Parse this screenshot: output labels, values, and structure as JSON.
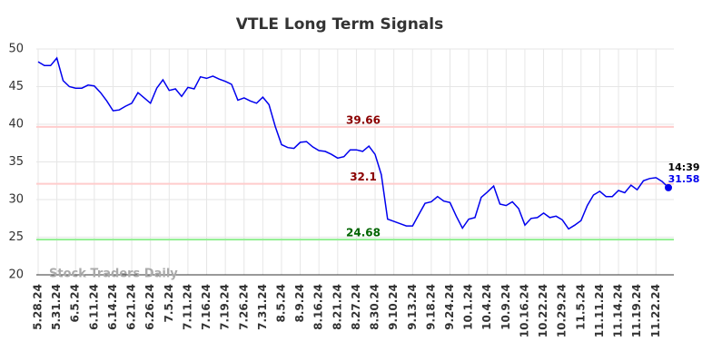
{
  "chart_data": {
    "type": "line",
    "title": "VTLE Long Term Signals",
    "watermark": "Stock Traders Daily",
    "categories": [
      "5.28.24",
      null,
      null,
      "5.31.24",
      null,
      null,
      "6.5.24",
      null,
      null,
      "6.11.24",
      null,
      null,
      "6.14.24",
      null,
      null,
      "6.21.24",
      null,
      null,
      "6.26.24",
      null,
      null,
      "7.5.24",
      null,
      null,
      "7.11.24",
      null,
      null,
      "7.16.24",
      null,
      null,
      "7.19.24",
      null,
      null,
      "7.26.24",
      null,
      null,
      "7.31.24",
      null,
      null,
      "8.5.24",
      null,
      null,
      "8.9.24",
      null,
      null,
      "8.16.24",
      null,
      null,
      "8.21.24",
      null,
      null,
      "8.27.24",
      null,
      null,
      "8.30.24",
      null,
      null,
      "9.10.24",
      null,
      null,
      "9.13.24",
      null,
      null,
      "9.18.24",
      null,
      null,
      "9.24.24",
      null,
      null,
      "10.1.24",
      null,
      null,
      "10.4.24",
      null,
      null,
      "10.9.24",
      null,
      null,
      "10.16.24",
      null,
      null,
      "10.22.24",
      null,
      null,
      "10.29.24",
      null,
      null,
      "11.5.24",
      null,
      null,
      "11.11.24",
      null,
      null,
      "11.14.24",
      null,
      null,
      "11.19.24",
      null,
      null,
      "11.22.24",
      null,
      null
    ],
    "values": [
      48.3,
      47.8,
      47.8,
      48.8,
      45.8,
      45.0,
      44.8,
      44.8,
      45.2,
      45.1,
      44.2,
      43.1,
      41.8,
      41.9,
      42.4,
      42.8,
      44.2,
      43.5,
      42.8,
      44.8,
      45.9,
      44.5,
      44.7,
      43.7,
      44.9,
      44.7,
      46.3,
      46.1,
      46.4,
      46.0,
      45.7,
      45.3,
      43.2,
      43.5,
      43.1,
      42.8,
      43.6,
      42.6,
      39.7,
      37.3,
      36.9,
      36.8,
      37.6,
      37.7,
      37.0,
      36.5,
      36.4,
      36.0,
      35.5,
      35.7,
      36.6,
      36.6,
      36.4,
      37.1,
      36.0,
      33.3,
      27.4,
      27.1,
      26.8,
      26.5,
      26.5,
      28.0,
      29.5,
      29.7,
      30.4,
      29.8,
      29.6,
      27.8,
      26.2,
      27.4,
      27.6,
      30.3,
      31.0,
      31.8,
      29.4,
      29.2,
      29.7,
      28.8,
      26.6,
      27.5,
      27.6,
      28.2,
      27.6,
      27.8,
      27.3,
      26.1,
      26.6,
      27.2,
      29.2,
      30.6,
      31.1,
      30.4,
      30.4,
      31.2,
      30.9,
      31.9,
      31.3,
      32.5,
      32.8,
      32.9,
      32.4,
      31.58
    ],
    "color": "#0000ee",
    "ylim": [
      20,
      50
    ],
    "yticks": [
      20,
      25,
      30,
      35,
      40,
      45,
      50
    ],
    "grid": true,
    "reference_lines": [
      {
        "value": 39.66,
        "color": "#ffcccc",
        "label_color": "#8b0000"
      },
      {
        "value": 32.1,
        "color": "#ffcccc",
        "label_color": "#8b0000"
      },
      {
        "value": 24.68,
        "color": "#90ee90",
        "label_color": "#006400"
      }
    ],
    "last_time": "14:39"
  }
}
